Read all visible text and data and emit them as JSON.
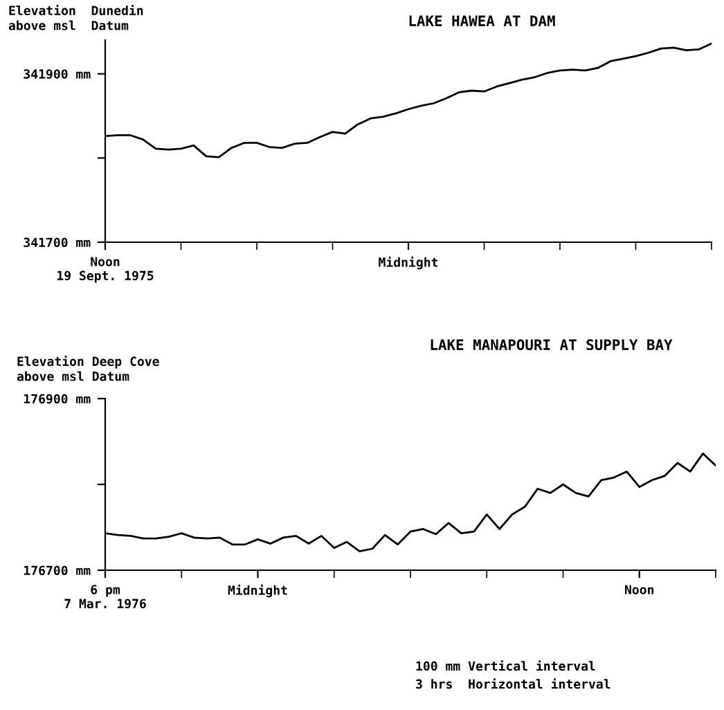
{
  "chart_data": [
    {
      "type": "line",
      "title": "LAKE HAWEA AT DAM",
      "ylabel": "Elevation  Dunedin\nabove msl  Datum",
      "categories": [
        "Noon\n19 Sept. 1975",
        null,
        null,
        null,
        null,
        null,
        null,
        null,
        null,
        null,
        null,
        null,
        null,
        null,
        null,
        null,
        null,
        null,
        null,
        null,
        null,
        null,
        null,
        null,
        "Midnight",
        null,
        null,
        null,
        null,
        null,
        null,
        null,
        null,
        null,
        null,
        null,
        null,
        null,
        null,
        null,
        null,
        null,
        null,
        null,
        null,
        null,
        null,
        null,
        null
      ],
      "series": [
        {
          "color": "#000000",
          "values": [
            341826,
            341827,
            341827,
            341822,
            341811,
            341810,
            341811,
            341815,
            341802,
            341801,
            341812,
            341818,
            341818,
            341813,
            341812,
            341817,
            341818,
            341825,
            341831,
            341829,
            341840,
            341847,
            341849,
            341853,
            341858,
            341862,
            341865,
            341871,
            341878,
            341880,
            341879,
            341885,
            341889,
            341893,
            341896,
            341901,
            341904,
            341905,
            341904,
            341907,
            341915,
            341918,
            341921,
            341925,
            341930,
            341931,
            341928,
            341929,
            341936
          ]
        }
      ],
      "ylim": [
        341700,
        341940
      ],
      "yticks": [
        {
          "value": 341700,
          "label": "341700 mm"
        },
        {
          "value": 341800,
          "label": null
        },
        {
          "value": 341900,
          "label": "341900 mm"
        }
      ],
      "grid": false,
      "line_style": "solid",
      "marker": "none"
    },
    {
      "type": "line",
      "title": "LAKE MANAPOURI AT SUPPLY BAY",
      "ylabel": "Elevation Deep Cove\nabove msl Datum",
      "categories": [
        "6 pm\n7 Mar. 1976",
        null,
        null,
        null,
        null,
        null,
        null,
        null,
        null,
        null,
        null,
        null,
        "Midnight",
        null,
        null,
        null,
        null,
        null,
        null,
        null,
        null,
        null,
        null,
        null,
        null,
        null,
        null,
        null,
        null,
        null,
        null,
        null,
        null,
        null,
        null,
        null,
        null,
        null,
        null,
        null,
        null,
        null,
        "Noon",
        null,
        null,
        null,
        null,
        null,
        null
      ],
      "series": [
        {
          "color": "#000000",
          "values": [
            176743,
            176741,
            176740,
            176737,
            176737,
            176739,
            176743,
            176738,
            176737,
            176738,
            176730,
            176730,
            176736,
            176731,
            176738,
            176740,
            176731,
            176740,
            176726,
            176733,
            176722,
            176725,
            176741,
            176730,
            176745,
            176748,
            176742,
            176755,
            176743,
            176745,
            176765,
            176748,
            176765,
            176774,
            176795,
            176790,
            176800,
            176790,
            176786,
            176805,
            176808,
            176815,
            176797,
            176805,
            176810,
            176825,
            176815,
            176836,
            176822
          ]
        }
      ],
      "ylim": [
        176700,
        176900
      ],
      "yticks": [
        {
          "value": 176700,
          "label": "176700 mm"
        },
        {
          "value": 176800,
          "label": null
        },
        {
          "value": 176900,
          "label": "176900 mm"
        }
      ],
      "annotations": [
        "100 mm Vertical interval",
        "3 hrs  Horizontal interval"
      ],
      "grid": false,
      "line_style": "solid",
      "marker": "none"
    }
  ]
}
